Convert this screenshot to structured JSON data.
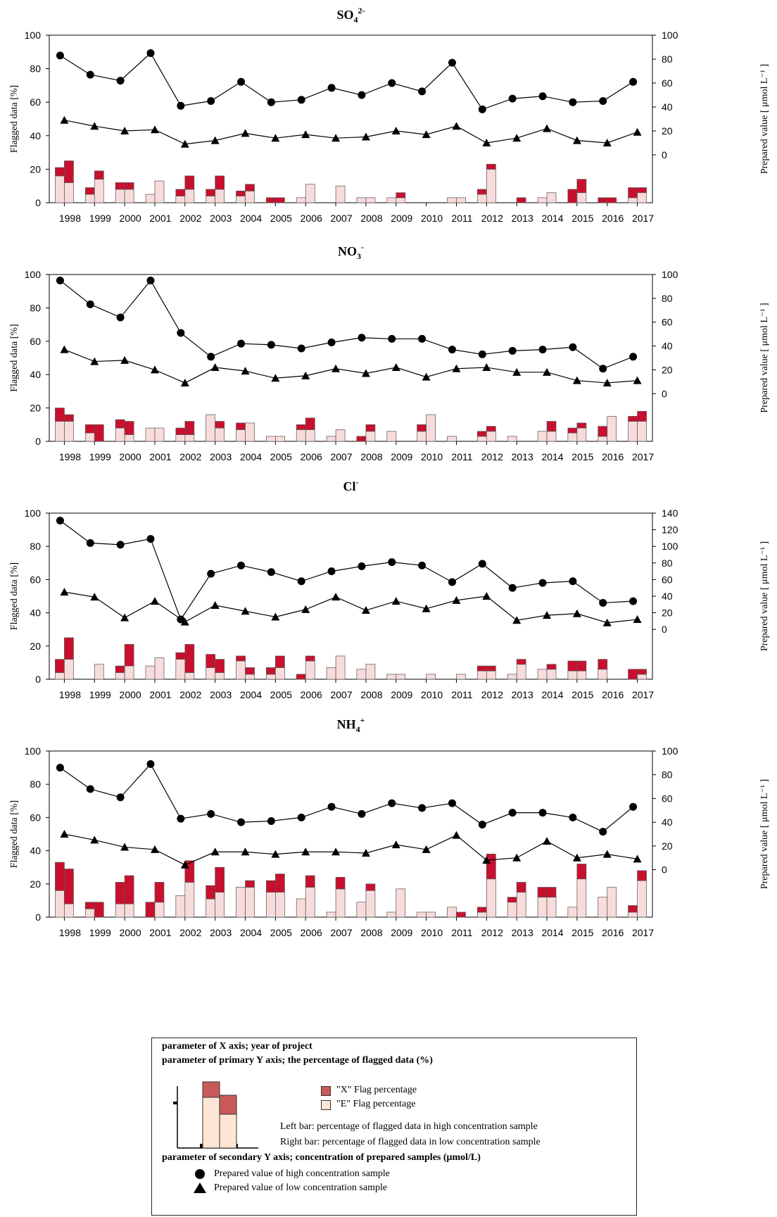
{
  "colors": {
    "x_flag": "#c8102e",
    "e_flag": "#f8dcdc",
    "legend_x": "#c85a5a",
    "legend_e": "#fde6d6",
    "line": "#000000"
  },
  "axis_labels": {
    "left": "Flagged data [%]",
    "right": "Prepared value [ μmol L⁻¹ ]"
  },
  "chart_data": [
    {
      "type": "bar+line",
      "title_main": "SO",
      "title_sub": "4",
      "title_sup": "2-",
      "categories": [
        "1998",
        "1999",
        "2000",
        "2001",
        "2002",
        "2003",
        "2004",
        "2005",
        "2006",
        "2007",
        "2008",
        "2009",
        "2010",
        "2011",
        "2012",
        "2013",
        "2014",
        "2015",
        "2016",
        "2017"
      ],
      "ylim": [
        0,
        100
      ],
      "yticks": [
        0,
        20,
        40,
        60,
        80,
        100
      ],
      "y2lim": [
        -40,
        100
      ],
      "y2ticks": [
        0,
        20,
        40,
        60,
        80,
        100
      ],
      "left_bar": {
        "e": [
          16,
          5,
          8,
          5,
          4,
          4,
          4,
          0,
          3,
          0,
          3,
          3,
          0,
          3,
          5,
          0,
          3,
          0,
          0,
          3
        ],
        "x": [
          5,
          4,
          4,
          0,
          4,
          4,
          3,
          3,
          0,
          0,
          0,
          0,
          0,
          0,
          3,
          0,
          0,
          8,
          3,
          6
        ]
      },
      "right_bar": {
        "e": [
          12,
          14,
          8,
          13,
          8,
          8,
          7,
          0,
          11,
          10,
          3,
          3,
          0,
          3,
          20,
          0,
          6,
          6,
          0,
          6
        ],
        "x": [
          13,
          5,
          4,
          0,
          8,
          8,
          4,
          3,
          0,
          0,
          0,
          3,
          0,
          0,
          3,
          3,
          0,
          8,
          3,
          3
        ]
      },
      "high": [
        83,
        67,
        62,
        85,
        41,
        45,
        61,
        44,
        46,
        56,
        50,
        60,
        53,
        77,
        38,
        47,
        49,
        44,
        45,
        61
      ],
      "low": [
        29,
        24,
        20,
        21,
        9,
        12,
        18,
        14,
        17,
        14,
        15,
        20,
        17,
        24,
        10,
        14,
        22,
        12,
        10,
        19
      ]
    },
    {
      "type": "bar+line",
      "title_main": "NO",
      "title_sub": "3",
      "title_sup": "-",
      "categories": [
        "1998",
        "1999",
        "2000",
        "2001",
        "2002",
        "2003",
        "2004",
        "2005",
        "2006",
        "2007",
        "2008",
        "2009",
        "2010",
        "2011",
        "2012",
        "2013",
        "2014",
        "2015",
        "2016",
        "2017"
      ],
      "ylim": [
        0,
        100
      ],
      "yticks": [
        0,
        20,
        40,
        60,
        80,
        100
      ],
      "y2lim": [
        -40,
        100
      ],
      "y2ticks": [
        0,
        20,
        40,
        60,
        80,
        100
      ],
      "left_bar": {
        "e": [
          12,
          5,
          8,
          8,
          4,
          16,
          7,
          3,
          7,
          3,
          0,
          6,
          6,
          3,
          3,
          3,
          6,
          5,
          3,
          12
        ],
        "x": [
          8,
          5,
          5,
          0,
          4,
          0,
          4,
          0,
          3,
          0,
          3,
          0,
          4,
          0,
          3,
          0,
          0,
          3,
          6,
          3
        ]
      },
      "right_bar": {
        "e": [
          12,
          0,
          4,
          8,
          4,
          8,
          11,
          3,
          7,
          7,
          6,
          0,
          16,
          0,
          6,
          0,
          6,
          8,
          15,
          12
        ],
        "x": [
          4,
          10,
          8,
          0,
          8,
          4,
          0,
          0,
          7,
          0,
          4,
          0,
          0,
          0,
          3,
          0,
          6,
          3,
          0,
          6
        ]
      },
      "high": [
        95,
        75,
        64,
        95,
        51,
        31,
        42,
        41,
        38,
        43,
        47,
        46,
        46,
        37,
        33,
        36,
        37,
        39,
        21,
        31
      ],
      "low": [
        37,
        27,
        28,
        20,
        9,
        22,
        19,
        13,
        15,
        21,
        17,
        22,
        14,
        21,
        22,
        18,
        18,
        11,
        9,
        11
      ]
    },
    {
      "type": "bar+line",
      "title_main": "Cl",
      "title_sub": "",
      "title_sup": "-",
      "categories": [
        "1998",
        "1999",
        "2000",
        "2001",
        "2002",
        "2003",
        "2004",
        "2005",
        "2006",
        "2007",
        "2008",
        "2009",
        "2010",
        "2011",
        "2012",
        "2013",
        "2014",
        "2015",
        "2016",
        "2017"
      ],
      "ylim": [
        0,
        100
      ],
      "yticks": [
        0,
        20,
        40,
        60,
        80,
        100
      ],
      "y2lim": [
        -60,
        140
      ],
      "y2ticks": [
        0,
        20,
        40,
        60,
        80,
        100,
        120,
        140
      ],
      "left_bar": {
        "e": [
          4,
          0,
          4,
          8,
          12,
          7,
          11,
          3,
          0,
          7,
          6,
          3,
          0,
          0,
          5,
          3,
          6,
          5,
          6,
          0
        ],
        "x": [
          8,
          0,
          4,
          0,
          4,
          8,
          3,
          4,
          3,
          0,
          0,
          0,
          0,
          0,
          3,
          0,
          0,
          6,
          6,
          6
        ]
      },
      "right_bar": {
        "e": [
          12,
          9,
          8,
          13,
          4,
          4,
          3,
          7,
          11,
          14,
          9,
          3,
          3,
          3,
          5,
          9,
          6,
          5,
          0,
          3
        ],
        "x": [
          13,
          0,
          13,
          0,
          17,
          8,
          4,
          7,
          3,
          0,
          0,
          0,
          0,
          0,
          3,
          3,
          3,
          6,
          0,
          3
        ]
      },
      "high": [
        131,
        104,
        102,
        109,
        12,
        67,
        77,
        69,
        58,
        70,
        76,
        81,
        77,
        57,
        79,
        50,
        56,
        58,
        32,
        34
      ],
      "low": [
        45,
        39,
        14,
        34,
        9,
        29,
        22,
        15,
        24,
        39,
        23,
        34,
        25,
        35,
        40,
        11,
        17,
        19,
        8,
        12
      ]
    },
    {
      "type": "bar+line",
      "title_main": "NH",
      "title_sub": "4",
      "title_sup": "+",
      "categories": [
        "1998",
        "1999",
        "2000",
        "2001",
        "2002",
        "2003",
        "2004",
        "2005",
        "2006",
        "2007",
        "2008",
        "2009",
        "2010",
        "2011",
        "2012",
        "2013",
        "2014",
        "2015",
        "2016",
        "2017"
      ],
      "ylim": [
        0,
        100
      ],
      "yticks": [
        0,
        20,
        40,
        60,
        80,
        100
      ],
      "y2lim": [
        -40,
        100
      ],
      "y2ticks": [
        0,
        20,
        40,
        60,
        80,
        100
      ],
      "left_bar": {
        "e": [
          16,
          5,
          8,
          0,
          13,
          11,
          18,
          15,
          11,
          3,
          9,
          3,
          3,
          6,
          3,
          9,
          12,
          6,
          12,
          3
        ],
        "x": [
          17,
          4,
          13,
          9,
          0,
          8,
          0,
          7,
          0,
          0,
          0,
          0,
          0,
          0,
          3,
          3,
          6,
          0,
          0,
          4
        ]
      },
      "right_bar": {
        "e": [
          8,
          0,
          8,
          9,
          21,
          15,
          18,
          15,
          18,
          17,
          16,
          17,
          3,
          0,
          23,
          15,
          12,
          23,
          18,
          22
        ],
        "x": [
          21,
          9,
          17,
          12,
          13,
          15,
          4,
          11,
          7,
          7,
          4,
          0,
          0,
          3,
          15,
          6,
          6,
          9,
          0,
          6
        ]
      },
      "high": [
        86,
        68,
        61,
        89,
        43,
        47,
        40,
        41,
        44,
        53,
        47,
        56,
        52,
        56,
        38,
        48,
        48,
        44,
        32,
        53
      ],
      "low": [
        30,
        25,
        19,
        17,
        4,
        15,
        15,
        13,
        15,
        15,
        14,
        21,
        17,
        29,
        8,
        10,
        24,
        10,
        13,
        9
      ]
    }
  ],
  "legend": {
    "line1": "parameter of X axis; year of project",
    "line2": "parameter of primary Y axis; the percentage of flagged data (%)",
    "x_flag": "\"X\" Flag percentage",
    "e_flag": "\"E\" Flag percentage",
    "left_bar": "Left bar: percentage of flagged data in high concentration sample",
    "right_bar": "Right bar: percentage of flagged data in low concentration sample",
    "line3": "parameter of secondary Y axis; concentration of prepared samples (μmol/L)",
    "high": "Prepared value of high concentration sample",
    "low": "Prepared value of low concentration sample"
  }
}
